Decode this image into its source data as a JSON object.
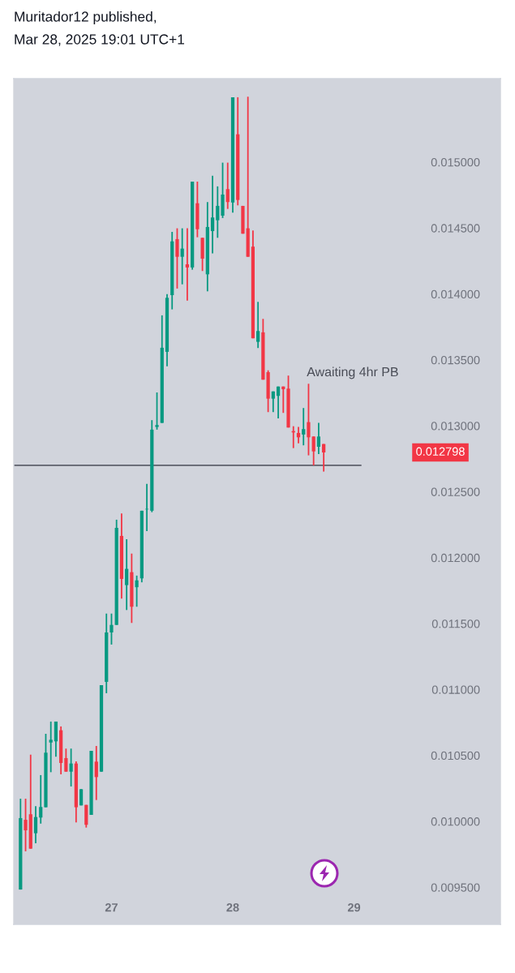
{
  "chart_data": {
    "type": "candlestick",
    "title": "Muritador12 published,",
    "subtitle": "Mar 28, 2025 19:01 UTC+1",
    "x": [
      "2025-03-26T06:00",
      "2025-03-26T07:00",
      "2025-03-26T08:00",
      "2025-03-26T09:00",
      "2025-03-26T10:00",
      "2025-03-26T11:00",
      "2025-03-26T12:00",
      "2025-03-26T13:00",
      "2025-03-26T14:00",
      "2025-03-26T15:00",
      "2025-03-26T16:00",
      "2025-03-26T17:00",
      "2025-03-26T18:00",
      "2025-03-26T19:00",
      "2025-03-26T20:00",
      "2025-03-26T21:00",
      "2025-03-26T22:00",
      "2025-03-26T23:00",
      "2025-03-27T00:00",
      "2025-03-27T01:00",
      "2025-03-27T02:00",
      "2025-03-27T03:00",
      "2025-03-27T04:00",
      "2025-03-27T05:00",
      "2025-03-27T06:00",
      "2025-03-27T07:00",
      "2025-03-27T08:00",
      "2025-03-27T09:00",
      "2025-03-27T10:00",
      "2025-03-27T11:00",
      "2025-03-27T12:00",
      "2025-03-27T13:00",
      "2025-03-27T14:00",
      "2025-03-27T15:00",
      "2025-03-27T16:00",
      "2025-03-27T17:00",
      "2025-03-27T18:00",
      "2025-03-27T19:00",
      "2025-03-27T20:00",
      "2025-03-27T21:00",
      "2025-03-27T22:00",
      "2025-03-27T23:00",
      "2025-03-28T00:00",
      "2025-03-28T01:00",
      "2025-03-28T02:00",
      "2025-03-28T03:00",
      "2025-03-28T04:00",
      "2025-03-28T05:00",
      "2025-03-28T06:00",
      "2025-03-28T07:00",
      "2025-03-28T08:00",
      "2025-03-28T09:00",
      "2025-03-28T10:00",
      "2025-03-28T11:00",
      "2025-03-28T12:00",
      "2025-03-28T13:00",
      "2025-03-28T14:00",
      "2025-03-28T15:00",
      "2025-03-28T16:00",
      "2025-03-28T17:00",
      "2025-03-28T18:00"
    ],
    "ohlc": [
      [
        0.009483,
        0.010172,
        0.009483,
        0.010025
      ],
      [
        0.010012,
        0.010172,
        0.009773,
        0.009932
      ],
      [
        0.010054,
        0.010506,
        0.009793,
        0.009793
      ],
      [
        0.00991,
        0.010115,
        0.009834,
        0.010033
      ],
      [
        0.010029,
        0.010351,
        0.009983,
        0.010109
      ],
      [
        0.010107,
        0.010664,
        0.010107,
        0.010521
      ],
      [
        0.010598,
        0.010757,
        0.010373,
        0.010619
      ],
      [
        0.010607,
        0.010757,
        0.01049,
        0.010757
      ],
      [
        0.010691,
        0.01072,
        0.010357,
        0.010443
      ],
      [
        0.01048,
        0.010552,
        0.010377,
        0.010377
      ],
      [
        0.010377,
        0.010552,
        0.010265,
        0.010439
      ],
      [
        0.010439,
        0.010455,
        0.009992,
        0.010107
      ],
      [
        0.010121,
        0.010244,
        0.010121,
        0.010244
      ],
      [
        0.010125,
        0.010125,
        0.009953,
        0.009974
      ],
      [
        0.010049,
        0.010535,
        0.010049,
        0.010535
      ],
      [
        0.010453,
        0.010572,
        0.010162,
        0.010336
      ],
      [
        0.010377,
        0.011033,
        0.010377,
        0.011033
      ],
      [
        0.011058,
        0.011576,
        0.010972,
        0.011433
      ],
      [
        0.011433,
        0.011576,
        0.011341,
        0.01149
      ],
      [
        0.01149,
        0.012288,
        0.01149,
        0.012226
      ],
      [
        0.012165,
        0.012335,
        0.01169,
        0.011839
      ],
      [
        0.011792,
        0.01214,
        0.011603,
        0.011915
      ],
      [
        0.01189,
        0.012031,
        0.011505,
        0.011628
      ],
      [
        0.011776,
        0.011864,
        0.011628,
        0.011828
      ],
      [
        0.011843,
        0.012356,
        0.011813,
        0.012356
      ],
      [
        0.012366,
        0.01256,
        0.012202,
        0.01237
      ],
      [
        0.012356,
        0.013043,
        0.012345,
        0.012971
      ],
      [
        0.012991,
        0.013253,
        0.012971,
        0.013006
      ],
      [
        0.013022,
        0.013838,
        0.013022,
        0.013592
      ],
      [
        0.013561,
        0.013999,
        0.013452,
        0.013971
      ],
      [
        0.013991,
        0.014471,
        0.013883,
        0.014399
      ],
      [
        0.014416,
        0.014498,
        0.014041,
        0.014282
      ],
      [
        0.014282,
        0.014498,
        0.014073,
        0.014344
      ],
      [
        0.014225,
        0.014498,
        0.01395,
        0.014201
      ],
      [
        0.014201,
        0.014852,
        0.014184,
        0.014852
      ],
      [
        0.014688,
        0.014852,
        0.01443,
        0.014491
      ],
      [
        0.014426,
        0.014426,
        0.014174,
        0.014268
      ],
      [
        0.014149,
        0.014697,
        0.01402,
        0.014508
      ],
      [
        0.014477,
        0.014897,
        0.014307,
        0.01458
      ],
      [
        0.014559,
        0.014816,
        0.014426,
        0.014668
      ],
      [
        0.014594,
        0.014996,
        0.014576,
        0.014754
      ],
      [
        0.014795,
        0.014996,
        0.014645,
        0.014697
      ],
      [
        0.014693,
        0.015492,
        0.014617,
        0.015492
      ],
      [
        0.015211,
        0.015492,
        0.014672,
        0.014713
      ],
      [
        0.014668,
        0.014668,
        0.014457,
        0.014457
      ],
      [
        0.014498,
        0.015496,
        0.014282,
        0.014282
      ],
      [
        0.014359,
        0.014482,
        0.013664,
        0.013664
      ],
      [
        0.013637,
        0.01394,
        0.01359,
        0.013719
      ],
      [
        0.013709,
        0.013811,
        0.01335,
        0.01335
      ],
      [
        0.013407,
        0.013421,
        0.013104,
        0.013206
      ],
      [
        0.013206,
        0.013261,
        0.013104,
        0.013261
      ],
      [
        0.013227,
        0.013298,
        0.013057,
        0.013298
      ],
      [
        0.013298,
        0.013298,
        0.013098,
        0.013278
      ],
      [
        0.013282,
        0.013381,
        0.012987,
        0.012987
      ],
      [
        0.01296,
        0.012997,
        0.012831,
        0.01295
      ],
      [
        0.012946,
        0.012991,
        0.012868,
        0.012913
      ],
      [
        0.012934,
        0.013135,
        0.012852,
        0.012975
      ],
      [
        0.013028,
        0.013319,
        0.012776,
        0.012913
      ],
      [
        0.012919,
        0.012919,
        0.0127,
        0.012806
      ],
      [
        0.012841,
        0.013022,
        0.012786,
        0.012919
      ],
      [
        0.012862,
        0.012862,
        0.012653,
        0.012798
      ]
    ],
    "colors": [
      "#089981",
      "#f23645",
      "#f23645",
      "#089981",
      "#089981",
      "#089981",
      "#089981",
      "#089981",
      "#f23645",
      "#f23645",
      "#089981",
      "#f23645",
      "#089981",
      "#f23645",
      "#089981",
      "#f23645",
      "#089981",
      "#089981",
      "#089981",
      "#089981",
      "#f23645",
      "#089981",
      "#f23645",
      "#089981",
      "#089981",
      "#089981",
      "#089981",
      "#089981",
      "#089981",
      "#089981",
      "#089981",
      "#f23645",
      "#089981",
      "#f23645",
      "#089981",
      "#f23645",
      "#f23645",
      "#089981",
      "#089981",
      "#089981",
      "#089981",
      "#f23645",
      "#089981",
      "#f23645",
      "#f23645",
      "#f23645",
      "#f23645",
      "#089981",
      "#f23645",
      "#f23645",
      "#089981",
      "#089981",
      "#f23645",
      "#f23645",
      "#f23645",
      "#f23645",
      "#089981",
      "#f23645",
      "#f23645",
      "#089981",
      "#f23645"
    ],
    "series": [
      {
        "type": "line",
        "x": [
          "2025-03-26T04:40",
          "2025-03-29T01:20"
        ],
        "values": [
          0.0127,
          0.0127
        ],
        "color": "#5d606b"
      }
    ],
    "xlim": [
      "2025-03-26T04:40",
      "2025-03-30T04:58"
    ],
    "xticks": [
      {
        "value": "2025-03-27",
        "label": "27"
      },
      {
        "value": "2025-03-28",
        "label": "28"
      },
      {
        "value": "2025-03-29",
        "label": "29"
      }
    ],
    "ylim": [
      0.009219,
      0.015633
    ],
    "yticks": [
      {
        "value": 0.0095,
        "label": "0.009500"
      },
      {
        "value": 0.01,
        "label": "0.010000"
      },
      {
        "value": 0.0105,
        "label": "0.010500"
      },
      {
        "value": 0.011,
        "label": "0.011000"
      },
      {
        "value": 0.0115,
        "label": "0.011500"
      },
      {
        "value": 0.012,
        "label": "0.012000"
      },
      {
        "value": 0.0125,
        "label": "0.012500"
      },
      {
        "value": 0.013,
        "label": "0.013000"
      },
      {
        "value": 0.0135,
        "label": "0.013500"
      },
      {
        "value": 0.014,
        "label": "0.014000"
      },
      {
        "value": 0.0145,
        "label": "0.014500"
      },
      {
        "value": 0.015,
        "label": "0.015000"
      }
    ],
    "annotations": [
      "Awaiting 4hr PB",
      "0.012798"
    ]
  }
}
